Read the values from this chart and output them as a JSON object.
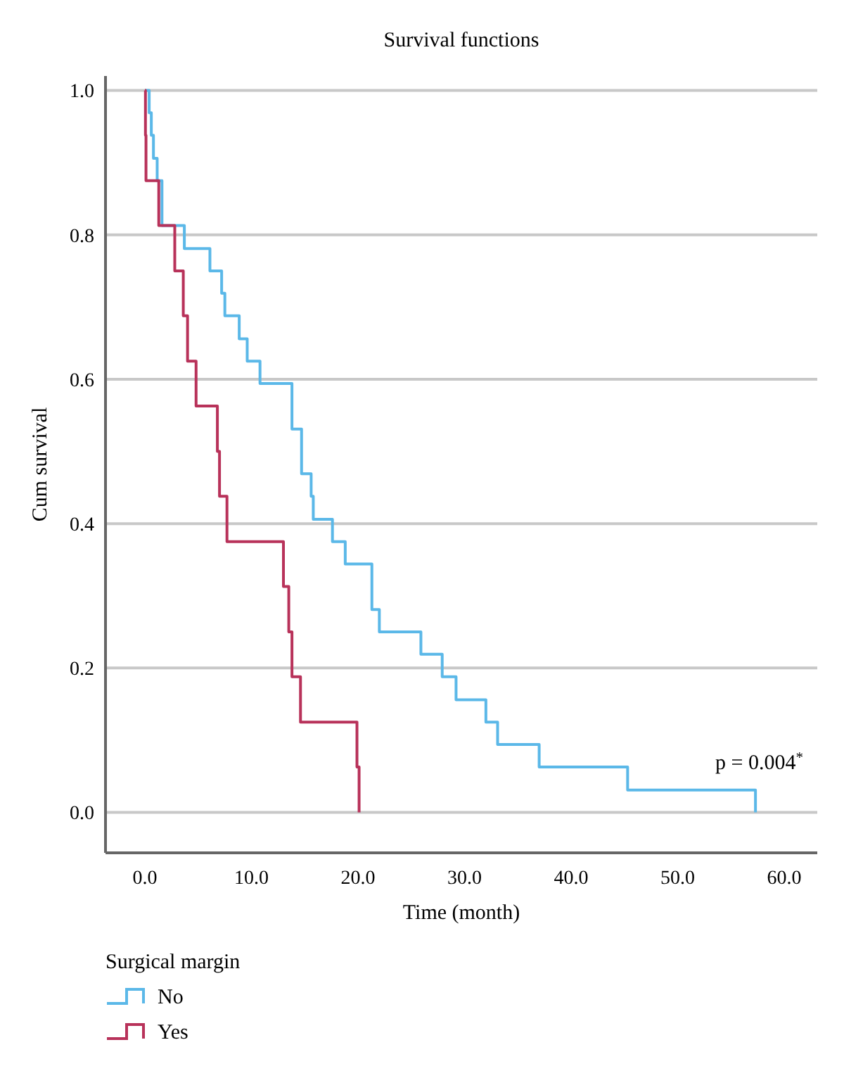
{
  "chart_data": {
    "type": "step",
    "title": "Survival functions",
    "xlabel": "Time (month)",
    "ylabel": "Cum survival",
    "legend_title": "Surgical margin",
    "series": [
      {
        "name": "No",
        "color": "#5bb8e8",
        "x": [
          0,
          0.4,
          0.6,
          0.8,
          1.15,
          1.6,
          3.7,
          6.1,
          7.2,
          7.5,
          8.85,
          9.6,
          10.8,
          13.8,
          14.7,
          15.6,
          15.8,
          17.6,
          18.8,
          21.3,
          22,
          25.9,
          27.9,
          29.2,
          32,
          33.1,
          37,
          45.3,
          57.3
        ],
        "values": [
          1,
          0.969,
          0.938,
          0.906,
          0.875,
          0.813,
          0.781,
          0.75,
          0.719,
          0.688,
          0.656,
          0.625,
          0.594,
          0.531,
          0.469,
          0.438,
          0.406,
          0.375,
          0.344,
          0.281,
          0.25,
          0.219,
          0.188,
          0.156,
          0.125,
          0.094,
          0.063,
          0.031,
          0
        ]
      },
      {
        "name": "Yes",
        "color": "#b8325a",
        "x": [
          0,
          0.05,
          0.1,
          1.3,
          2.8,
          3.6,
          4.0,
          4.8,
          6.8,
          7.0,
          7.7,
          13.0,
          13.5,
          13.8,
          14.6,
          19.9,
          20.1
        ],
        "values": [
          1,
          0.938,
          0.875,
          0.813,
          0.75,
          0.688,
          0.625,
          0.563,
          0.5,
          0.438,
          0.375,
          0.313,
          0.25,
          0.188,
          0.125,
          0.063,
          0
        ]
      }
    ],
    "xlim": [
      -3.7,
      63.1
    ],
    "xticks": [
      {
        "value": 0,
        "label": "0.0"
      },
      {
        "value": 10,
        "label": "10.0"
      },
      {
        "value": 20,
        "label": "20.0"
      },
      {
        "value": 30,
        "label": "30.0"
      },
      {
        "value": 40,
        "label": "40.0"
      },
      {
        "value": 50,
        "label": "50.0"
      },
      {
        "value": 60,
        "label": "60.0"
      }
    ],
    "ylim": [
      -0.056,
      1.02
    ],
    "yticks": [
      {
        "value": 0,
        "label": "0.0"
      },
      {
        "value": 0.2,
        "label": "0.2"
      },
      {
        "value": 0.4,
        "label": "0.4"
      },
      {
        "value": 0.6,
        "label": "0.6"
      },
      {
        "value": 0.8,
        "label": "0.8"
      },
      {
        "value": 1,
        "label": "1.0"
      }
    ],
    "grid": "y",
    "legend": "bottom",
    "line_style": "solid",
    "annotations": [
      "p = 0.004$^{*}$"
    ]
  }
}
